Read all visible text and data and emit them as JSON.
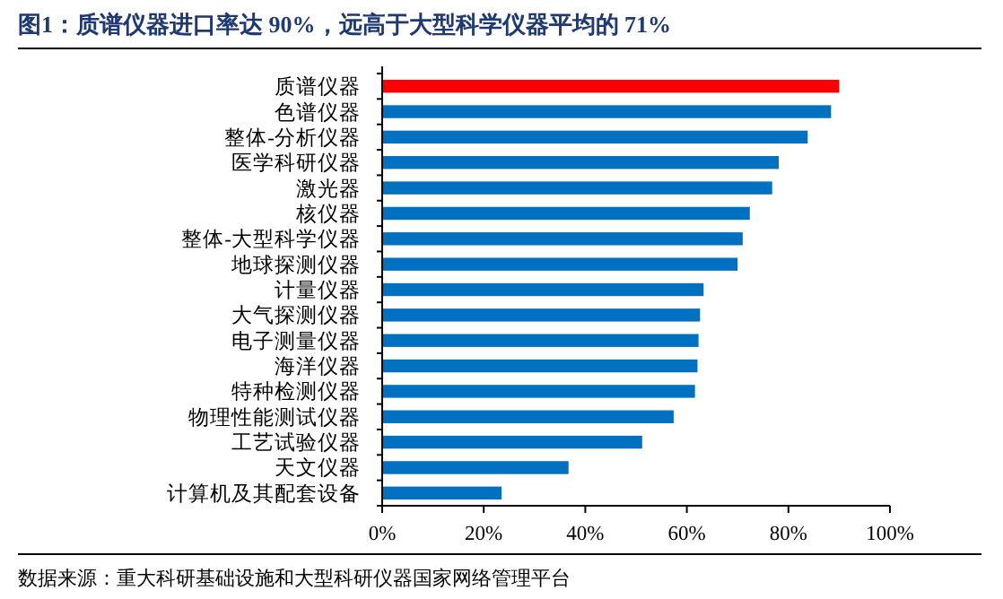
{
  "chart_data": {
    "type": "bar",
    "orientation": "horizontal",
    "title": "图1：质谱仪器进口率达 90%，远高于大型科学仪器平均的 71%",
    "categories": [
      "质谱仪器",
      "色谱仪器",
      "整体-分析仪器",
      "医学科研仪器",
      "激光器",
      "核仪器",
      "整体-大型科学仪器",
      "地球探测仪器",
      "计量仪器",
      "大气探测仪器",
      "电子测量仪器",
      "海洋仪器",
      "特种检测仪器",
      "物理性能测试仪器",
      "工艺试验仪器",
      "天文仪器",
      "计算机及其配套设备"
    ],
    "values": [
      90,
      88.4,
      83.8,
      78.1,
      76.8,
      72.4,
      71,
      70,
      63.3,
      62.6,
      62.3,
      62.1,
      61.6,
      57.4,
      51.2,
      36.7,
      23.5
    ],
    "colors": [
      "#ff0000",
      "#0070c0",
      "#0070c0",
      "#0070c0",
      "#0070c0",
      "#0070c0",
      "#0070c0",
      "#0070c0",
      "#0070c0",
      "#0070c0",
      "#0070c0",
      "#0070c0",
      "#0070c0",
      "#0070c0",
      "#0070c0",
      "#0070c0",
      "#0070c0"
    ],
    "xlim": [
      0,
      100
    ],
    "xticks": [
      {
        "value": 0,
        "label": "0%"
      },
      {
        "value": 20,
        "label": "20%"
      },
      {
        "value": 40,
        "label": "40%"
      },
      {
        "value": 60,
        "label": "60%"
      },
      {
        "value": 80,
        "label": "80%"
      },
      {
        "value": 100,
        "label": "100%"
      }
    ],
    "grid": false,
    "annotations": [
      "数据来源：重大科研基础设施和大型科研仪器国家网络管理平台"
    ]
  }
}
